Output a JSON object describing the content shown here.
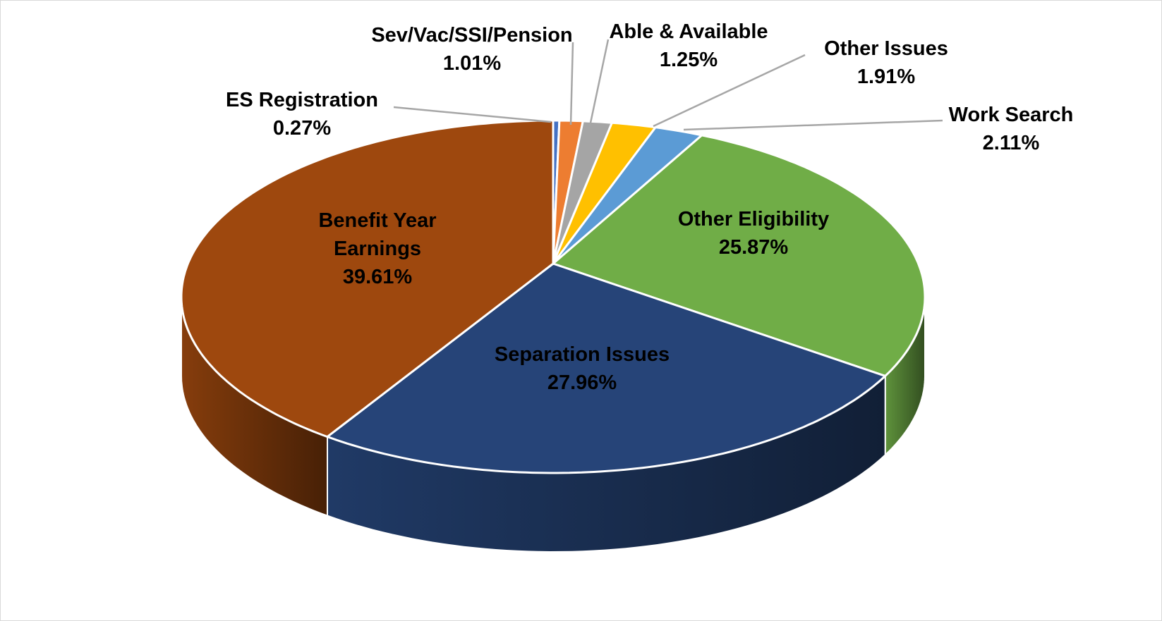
{
  "chart_data": {
    "type": "pie",
    "style": "3d",
    "title": "",
    "slices": [
      {
        "label": "ES Registration",
        "value": 0.27,
        "value_label": "0.27%",
        "color": "#4472c4"
      },
      {
        "label": "Sev/Vac/SSI/Pension",
        "value": 1.01,
        "value_label": "1.01%",
        "color": "#ed7d31"
      },
      {
        "label": "Able & Available",
        "value": 1.25,
        "value_label": "1.25%",
        "color": "#a5a5a5"
      },
      {
        "label": "Other Issues",
        "value": 1.91,
        "value_label": "1.91%",
        "color": "#ffc000"
      },
      {
        "label": "Work Search",
        "value": 2.11,
        "value_label": "2.11%",
        "color": "#5b9bd5"
      },
      {
        "label": "Other Eligibility",
        "value": 25.87,
        "value_label": "25.87%",
        "color": "#70ad47"
      },
      {
        "label": "Separation Issues",
        "value": 27.96,
        "value_label": "27.96%",
        "color": "#264478"
      },
      {
        "label": "Benefit Year Earnings",
        "value": 39.61,
        "value_label": "39.61%",
        "color": "#9e480e"
      }
    ]
  }
}
